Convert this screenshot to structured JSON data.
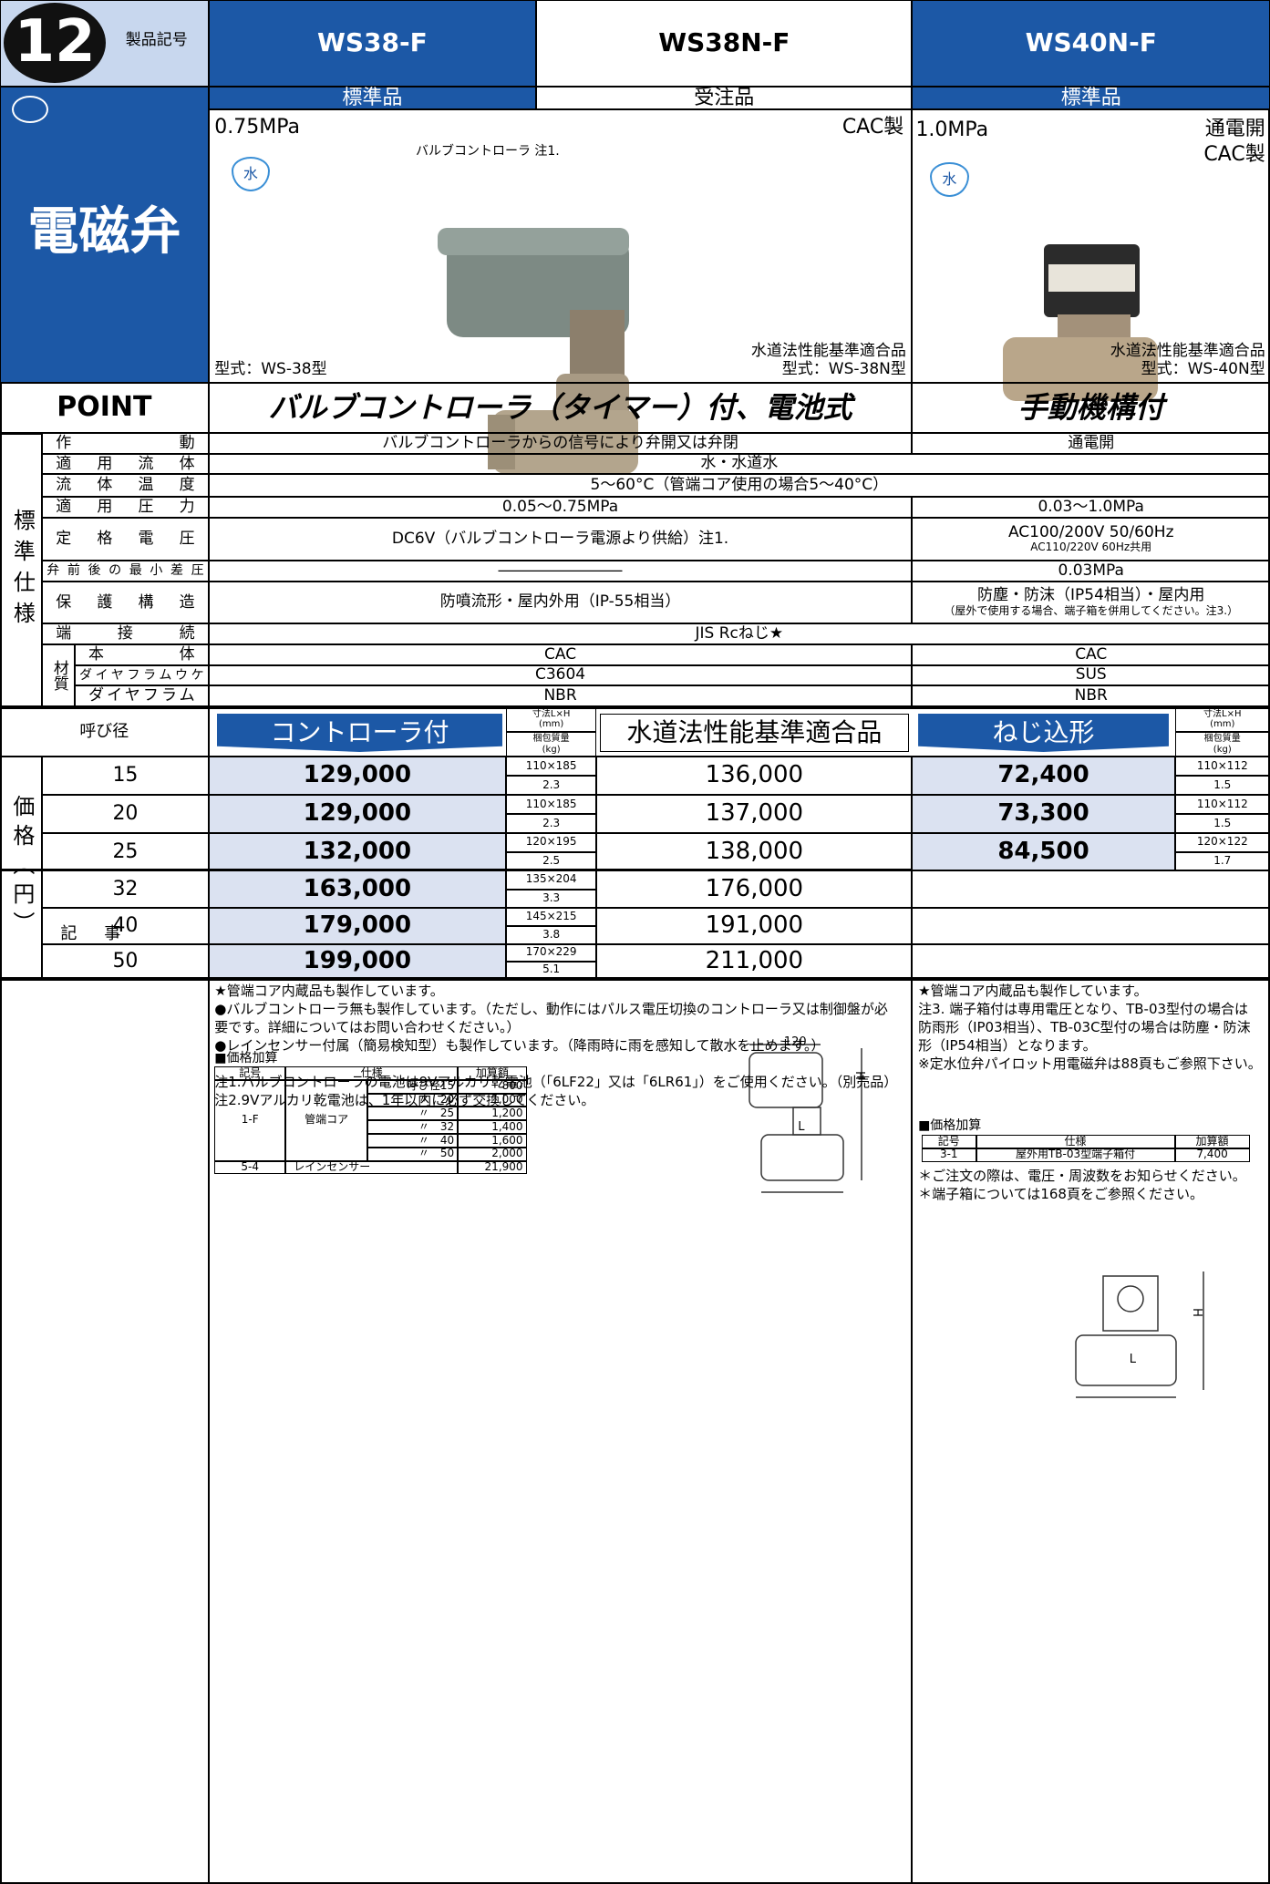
{
  "header": {
    "number": "12",
    "code_label": "製品記号",
    "category": "電磁弁",
    "models": [
      "WS38-F",
      "WS38N-F",
      "WS40N-F"
    ],
    "grades": [
      "標準品",
      "受注品",
      "標準品"
    ]
  },
  "products": {
    "left": {
      "pressure": "0.75MPa",
      "material": "CAC製",
      "fluid_icon": "水",
      "callout": "バルブコントローラ 注1.",
      "type_left": "型式：WS-38型",
      "cert": "水道法性能基準適合品",
      "type_right": "型式：WS-38N型"
    },
    "right": {
      "pressure": "1.0MPa",
      "mode": "通電開",
      "material": "CAC製",
      "fluid_icon": "水",
      "cert": "水道法性能基準適合品",
      "type": "型式：WS-40N型"
    }
  },
  "point": {
    "label": "POINT",
    "left": "バルブコントローラ（タイマー）付、電池式",
    "right": "手動機構付"
  },
  "spec": {
    "group_label": "標準仕様",
    "material_label": "材質",
    "rows": [
      {
        "label": "作動",
        "left": "バルブコントローラからの信号により弁開又は弁閉",
        "right": "通電開"
      },
      {
        "label": "適用流体",
        "span": "水・水道水"
      },
      {
        "label": "流体温度",
        "span": "5〜60°C（管端コア使用の場合5〜40°C）"
      },
      {
        "label": "適用圧力",
        "left": "0.05〜0.75MPa",
        "right": "0.03〜1.0MPa"
      },
      {
        "label": "定格電圧",
        "left": "DC6V（バルブコントローラ電源より供給）注1.",
        "right": [
          "AC100/200V 50/60Hz",
          "AC110/220V 60Hz共用"
        ]
      },
      {
        "label": "弁前後の最小差圧",
        "left": "――――――――",
        "right": "0.03MPa"
      },
      {
        "label": "保護構造",
        "left": "防噴流形・屋内外用（IP-55相当）",
        "right": [
          "防塵・防沫（IP54相当）・屋内用",
          "（屋外で使用する場合、端子箱を併用してください。注3.）"
        ]
      },
      {
        "label": "端接続",
        "span": "JIS Rcねじ★"
      },
      {
        "label": "本体",
        "left": "CAC",
        "right": "CAC"
      },
      {
        "label": "ダイヤフラムウケ",
        "left": "C3604",
        "right": "SUS"
      },
      {
        "label": "ダイヤフラム",
        "left": "NBR",
        "right": "NBR"
      }
    ]
  },
  "price": {
    "label": "価格（円）",
    "size_label": "呼び径",
    "controller": "コントローラ付",
    "dim_label": [
      "寸法L×H",
      "(mm)"
    ],
    "weight_label": [
      "梱包質量",
      "(kg)"
    ],
    "certified": "水道法性能基準適合品",
    "screw": "ねじ込形",
    "rows": [
      {
        "size": "15",
        "controller": "129,000",
        "dim": "110×185",
        "weight": "2.3",
        "certified": "136,000",
        "screw": "72,400",
        "screw_dim": "110×112",
        "screw_weight": "1.5"
      },
      {
        "size": "20",
        "controller": "129,000",
        "dim": "110×185",
        "weight": "2.3",
        "certified": "137,000",
        "screw": "73,300",
        "screw_dim": "110×112",
        "screw_weight": "1.5"
      },
      {
        "size": "25",
        "controller": "132,000",
        "dim": "120×195",
        "weight": "2.5",
        "certified": "138,000",
        "screw": "84,500",
        "screw_dim": "120×122",
        "screw_weight": "1.7"
      },
      {
        "size": "32",
        "controller": "163,000",
        "dim": "135×204",
        "weight": "3.3",
        "certified": "176,000"
      },
      {
        "size": "40",
        "controller": "179,000",
        "dim": "145×215",
        "weight": "3.8",
        "certified": "191,000"
      },
      {
        "size": "50",
        "controller": "199,000",
        "dim": "170×229",
        "weight": "5.1",
        "certified": "211,000"
      }
    ]
  },
  "notes": {
    "label": "記事",
    "left": [
      "★管端コア内蔵品も製作しています。",
      "●バルブコントローラ無も製作しています。（ただし、動作にはパルス電圧切換のコントローラ又は制御盤が必要です。詳細についてはお問い合わせください。）",
      "●レインセンサー付属（簡易検知型）も製作しています。（降雨時に雨を感知して散水を止めます。）",
      "注1.バルブコントローラの電池は9Vアルカリ乾電池（「6LF22」又は「6LR61」）をご使用ください。（別売品）",
      "注2.9Vアルカリ乾電池は、1年以内に必ず交換してください。"
    ],
    "left_addon": {
      "title": "■価格加算",
      "headers": [
        "記号",
        "仕様",
        "加算額"
      ],
      "code": "1-F",
      "spec": "管端コア",
      "items": [
        [
          "呼び径15",
          "800"
        ],
        [
          "〃　20",
          "1,000"
        ],
        [
          "〃　25",
          "1,200"
        ],
        [
          "〃　32",
          "1,400"
        ],
        [
          "〃　40",
          "1,600"
        ],
        [
          "〃　50",
          "2,000"
        ]
      ],
      "extra": [
        "5-4",
        "レインセンサー",
        "21,900"
      ]
    },
    "left_drawing": [
      "120",
      "H",
      "L"
    ],
    "right": [
      "★管端コア内蔵品も製作しています。",
      "注3. 端子箱付は専用電圧となり、TB-03型付の場合は防雨形（IP03相当）、TB-03C型付の場合は防塵・防沫形（IP54相当）となります。",
      "※定水位弁パイロット用電磁弁は88頁もご参照下さい。"
    ],
    "right_addon": {
      "title": "■価格加算",
      "headers": [
        "記号",
        "仕様",
        "加算額"
      ],
      "row": [
        "3-1",
        "屋外用TB-03型端子箱付",
        "7,400"
      ]
    },
    "right_after": [
      "＊ご注文の際は、電圧・周波数をお知らせください。",
      "＊端子箱については168頁をご参照ください。"
    ],
    "right_drawing": [
      "H",
      "L"
    ]
  }
}
